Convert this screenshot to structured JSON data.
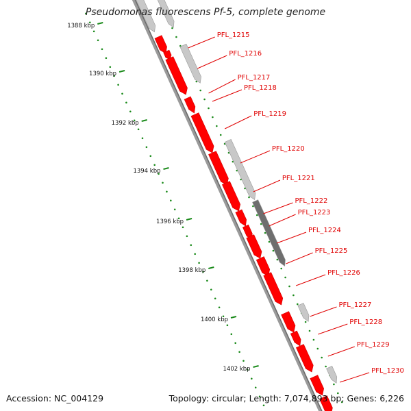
{
  "title": "Pseudomonas fluorescens Pf-5, complete genome",
  "footer": {
    "accession": "Accession: NC_004129",
    "topology": "Topology: circular; Length: 7,074,893 bp; Genes: 6,226"
  },
  "colors": {
    "backbone": "#8a8a8a",
    "cds_forward": "#ff0000",
    "feature_gray": "#c8c8c8",
    "feature_dark": "#6e6e6e",
    "tick_dots": "#1a8a1a",
    "label_text": "#e00000",
    "kbp_text": "#111111"
  },
  "kbp_labels": [
    "1388 kbp",
    "1390 kbp",
    "1392 kbp",
    "1394 kbp",
    "1396 kbp",
    "1398 kbp",
    "1400 kbp",
    "1402 kbp"
  ],
  "gene_labels": [
    "PFL_1215",
    "PFL_1216",
    "PFL_1217",
    "PFL_1218",
    "PFL_1219",
    "PFL_1220",
    "PFL_1221",
    "PFL_1222",
    "PFL_1223",
    "PFL_1224",
    "PFL_1225",
    "PFL_1226",
    "PFL_1227",
    "PFL_1228",
    "PFL_1229",
    "PFL_1230"
  ]
}
